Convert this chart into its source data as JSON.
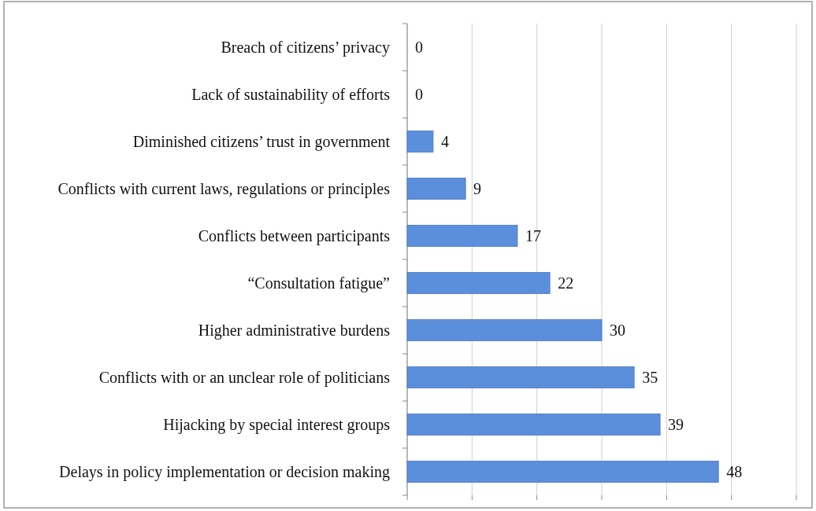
{
  "chart_data": {
    "type": "bar",
    "orientation": "horizontal",
    "categories": [
      "Breach of citizens’ privacy",
      "Lack of sustainability of efforts",
      "Diminished citizens’ trust in government",
      "Conflicts with current laws, regulations or principles",
      "Conflicts between participants",
      "“Consultation fatigue”",
      "Higher administrative burdens",
      "Conflicts with or an unclear role of politicians",
      "Hijacking by special interest groups",
      "Delays in policy implementation or decision making"
    ],
    "values": [
      0,
      0,
      4,
      9,
      17,
      22,
      30,
      35,
      39,
      48
    ],
    "color": "#5b8fdc",
    "xlim": [
      0,
      60
    ],
    "xticks": [
      {
        "value": 0,
        "label": null
      },
      {
        "value": 10,
        "label": null
      },
      {
        "value": 20,
        "label": null
      },
      {
        "value": 30,
        "label": null
      },
      {
        "value": 40,
        "label": null
      },
      {
        "value": 50,
        "label": null
      },
      {
        "value": 60,
        "label": null
      }
    ],
    "grid": "x",
    "data_labels": true,
    "tick_labels": "y"
  }
}
